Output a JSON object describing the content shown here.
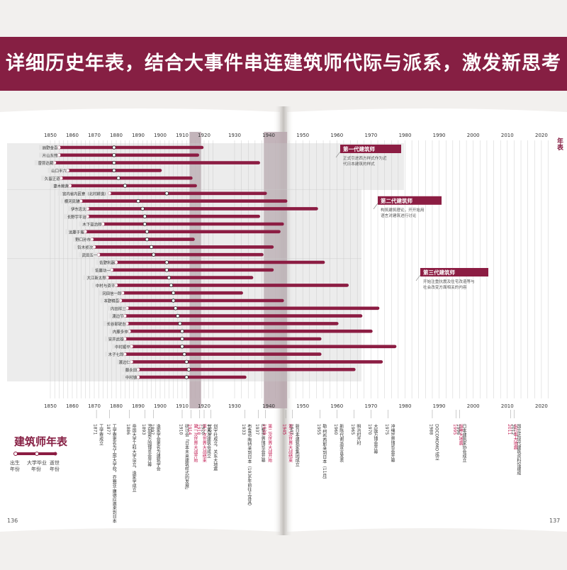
{
  "banner": {
    "title": "详细历史年表，结合大事件串连建筑师代际与派系，激发新思考"
  },
  "left_page": {
    "page_number": "136",
    "heading": "建筑师年表",
    "legend": {
      "birth": "出生\n年份",
      "graduation": "大学毕业\n年份",
      "death": "逝世\n年份"
    }
  },
  "right_page": {
    "page_number": "137",
    "side_label": "年表"
  },
  "colors": {
    "accent": "#861f43",
    "bar": "#8c1d43",
    "band": "#b9a7ae",
    "gen_box": "#8c1d43"
  },
  "axis": {
    "left_years": [
      "1850",
      "1860",
      "1870",
      "1880",
      "1890",
      "1900",
      "1910",
      "1920"
    ],
    "right_years": [
      "1930",
      "1940",
      "1950",
      "1960",
      "1970",
      "1980",
      "1990",
      "2000",
      "2010",
      "2020"
    ]
  },
  "generations": [
    {
      "title": "第一代建筑师",
      "desc1": "正式引进西方样式作为近",
      "desc2": "代日本建筑的样式"
    },
    {
      "title": "第二代建筑师",
      "desc1": "构筑建筑理论，开开始用",
      "desc2": "语言对建筑进行讨论"
    },
    {
      "title": "第三代建筑师",
      "desc1": "开始注重抗震及住宅改造等与",
      "desc2": "社会改变方面相关的内容"
    }
  ],
  "architects": [
    {
      "name": "辰野金吾",
      "birth": 1854,
      "grad": 1879,
      "death": 1919
    },
    {
      "name": "片山东熊",
      "birth": 1854,
      "grad": 1879,
      "death": 1917
    },
    {
      "name": "曾弥达藏",
      "birth": 1852,
      "grad": 1879,
      "death": 1937
    },
    {
      "name": "山口半六",
      "birth": 1858,
      "grad": 1879,
      "death": 1900
    },
    {
      "name": "久留正道",
      "birth": 1855,
      "grad": 1881,
      "death": 1914
    },
    {
      "name": "妻木赖黄",
      "birth": 1859,
      "grad": 1884,
      "death": 1916
    },
    {
      "name": "宫内省内匠寮（北村耕造）",
      "birth": 1877,
      "grad": 1903,
      "death": 1939
    },
    {
      "name": "横河民辅",
      "birth": 1864,
      "grad": 1890,
      "death": 1945
    },
    {
      "name": "伊东忠太",
      "birth": 1867,
      "grad": 1892,
      "death": 1954
    },
    {
      "name": "长野宇平治",
      "birth": 1867,
      "grad": 1893,
      "death": 1937
    },
    {
      "name": "木下益治郎",
      "birth": 1874,
      "grad": 1893,
      "death": 1944
    },
    {
      "name": "远藤于菟",
      "birth": 1866,
      "grad": 1894,
      "death": 1943
    },
    {
      "name": "野口孙市",
      "birth": 1869,
      "grad": 1894,
      "death": 1915
    },
    {
      "name": "铃木祯次",
      "birth": 1870,
      "grad": 1896,
      "death": 1941
    },
    {
      "name": "武田五一",
      "birth": 1872,
      "grad": 1897,
      "death": 1938
    },
    {
      "name": "佐野利器",
      "birth": 1880,
      "grad": 1903,
      "death": 1956
    },
    {
      "name": "佐藤功一",
      "birth": 1878,
      "grad": 1903,
      "death": 1941
    },
    {
      "name": "大江新太郎",
      "birth": 1876,
      "grad": 1904,
      "death": 1935
    },
    {
      "name": "中村与资平",
      "birth": 1880,
      "grad": 1905,
      "death": 1963
    },
    {
      "name": "冈田信一郎",
      "birth": 1883,
      "grad": 1906,
      "death": 1932
    },
    {
      "name": "本野精吾",
      "birth": 1882,
      "grad": 1906,
      "death": 1944
    },
    {
      "name": "内田祥三",
      "birth": 1885,
      "grad": 1907,
      "death": 1972
    },
    {
      "name": "渡边节",
      "birth": 1884,
      "grad": 1908,
      "death": 1967
    },
    {
      "name": "长谷部锐吉",
      "birth": 1885,
      "grad": 1909,
      "death": 1960
    },
    {
      "name": "内藤多仲",
      "birth": 1886,
      "grad": 1910,
      "death": 1970
    },
    {
      "name": "安井武雄",
      "birth": 1884,
      "grad": 1910,
      "death": 1955
    },
    {
      "name": "中村顺平",
      "birth": 1887,
      "grad": 1910,
      "death": 1977
    },
    {
      "name": "木子七郎",
      "birth": 1884,
      "grad": 1911,
      "death": 1955
    },
    {
      "name": "渡边仁",
      "birth": 1887,
      "grad": 1912,
      "death": 1973
    },
    {
      "name": "藤永田",
      "birth": 1890,
      "grad": 1913,
      "death": 1965
    },
    {
      "name": "中村镇",
      "birth": 1890,
      "grad": 1912,
      "death": 1933
    }
  ],
  "events_left": [
    {
      "year": "1871",
      "text": "工学寮成立",
      "highlight": false
    },
    {
      "year": "1877",
      "text": "工学寮更名为工部大学校，乔赛亚·康德应邀来到日本",
      "highlight": false
    },
    {
      "year": "1886",
      "text": "帝国大学工科大学设立，造家学成立",
      "highlight": false
    },
    {
      "year": "1893",
      "text": "芝加哥万国博览会开幕",
      "highlight": false
    },
    {
      "year": "1897",
      "text": "造家学会更名为建筑学会",
      "highlight": false
    },
    {
      "year": "1910",
      "text": "研讨会「日本未来建筑样式的发展」",
      "highlight": false
    },
    {
      "year": "1914",
      "text": "第一次世界大战开始",
      "highlight": true
    },
    {
      "year": "1918",
      "text": "第一次世界大战结束",
      "highlight": true
    },
    {
      "year": "1920",
      "text": "分离派建筑会成立",
      "highlight": false
    },
    {
      "year": "1923",
      "text": "创宇社成立，关东大地震",
      "highlight": false
    }
  ],
  "events_right": [
    {
      "year": "1933",
      "text": "布鲁诺·陶特来到日本（1936年前往土耳其）",
      "highlight": false
    },
    {
      "year": "1937",
      "text": "巴黎世界博览会开幕",
      "highlight": false
    },
    {
      "year": "1939",
      "text": "第二次世界大战开始",
      "highlight": true
    },
    {
      "year": "1945",
      "text": "第二次世界大战结束",
      "highlight": true
    },
    {
      "year": "1947",
      "text": "新日本建筑家集团成立",
      "highlight": false
    },
    {
      "year": "1955",
      "text": "勒·柯布西耶来到日本（11月）",
      "highlight": false
    },
    {
      "year": "1960",
      "text": "新陈代谢派宣言发表",
      "highlight": false
    },
    {
      "year": "1965",
      "text": "明治村开村",
      "highlight": false
    },
    {
      "year": "1970",
      "text": "大阪万博会开幕",
      "highlight": false
    },
    {
      "year": "1975",
      "text": "冲绳世界博览会开幕",
      "highlight": false
    },
    {
      "year": "1988",
      "text": "DOCOMOMO 成立",
      "highlight": false
    },
    {
      "year": "1995",
      "text": "阪神大地震",
      "highlight": true
    },
    {
      "year": "1996",
      "text": "日本建筑家协会成立",
      "highlight": false
    },
    {
      "year": "2011",
      "text": "东日本大地震",
      "highlight": true
    },
    {
      "year": "2012",
      "text": "国立近现代建筑资料馆建成",
      "highlight": false
    }
  ]
}
